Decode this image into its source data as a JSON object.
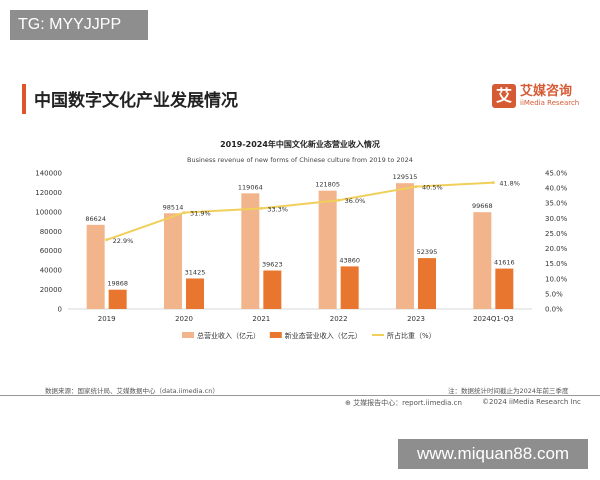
{
  "watermark_top": "TG: MYYJJPP",
  "watermark_bottom": "www.miquan88.com",
  "page_title": "中国数字文化产业发展情况",
  "logo": {
    "mark": "艾",
    "name_cn": "艾媒咨询",
    "name_en": "iiMedia Research"
  },
  "chart_data": {
    "type": "bar",
    "title": "2019-2024年中国文化新业态营业收入情况",
    "subtitle": "Business revenue of new forms of Chinese culture from 2019 to 2024",
    "categories": [
      "2019",
      "2020",
      "2021",
      "2022",
      "2023",
      "2024Q1-Q3"
    ],
    "series": [
      {
        "name": "总营业收入（亿元）",
        "type": "bar",
        "axis": "left",
        "color": "#f2b48a",
        "values": [
          86624,
          98514,
          119064,
          121805,
          129515,
          99668
        ]
      },
      {
        "name": "新业态营业收入（亿元）",
        "type": "bar",
        "axis": "left",
        "color": "#e8762e",
        "values": [
          19868,
          31425,
          39623,
          43860,
          52395,
          41616
        ]
      },
      {
        "name": "所占比重（%）",
        "type": "line",
        "axis": "right",
        "color": "#f0cf5a",
        "values": [
          22.9,
          31.9,
          33.3,
          36.0,
          40.5,
          41.8
        ],
        "labels": [
          "22.9%",
          "31.9%",
          "33.3%",
          "36.0%",
          "40.5%",
          "41.8%"
        ]
      }
    ],
    "ylim": [
      0,
      140000
    ],
    "yticks": [
      "0",
      "20000",
      "40000",
      "60000",
      "80000",
      "100000",
      "120000",
      "140000"
    ],
    "y2lim": [
      0,
      45
    ],
    "y2ticks": [
      "0.0%",
      "5.0%",
      "10.0%",
      "15.0%",
      "20.0%",
      "25.0%",
      "30.0%",
      "35.0%",
      "40.0%",
      "45.0%"
    ],
    "legend": "bottom"
  },
  "footer": {
    "source": "数据来源：国家统计局、艾媒数据中心（data.iimedia.cn）",
    "note": "注：数据统计时间截止为2024年前三季度",
    "report": "艾媒报告中心：report.iimedia.cn",
    "copyright": "©2024  iiMedia Research  Inc"
  }
}
